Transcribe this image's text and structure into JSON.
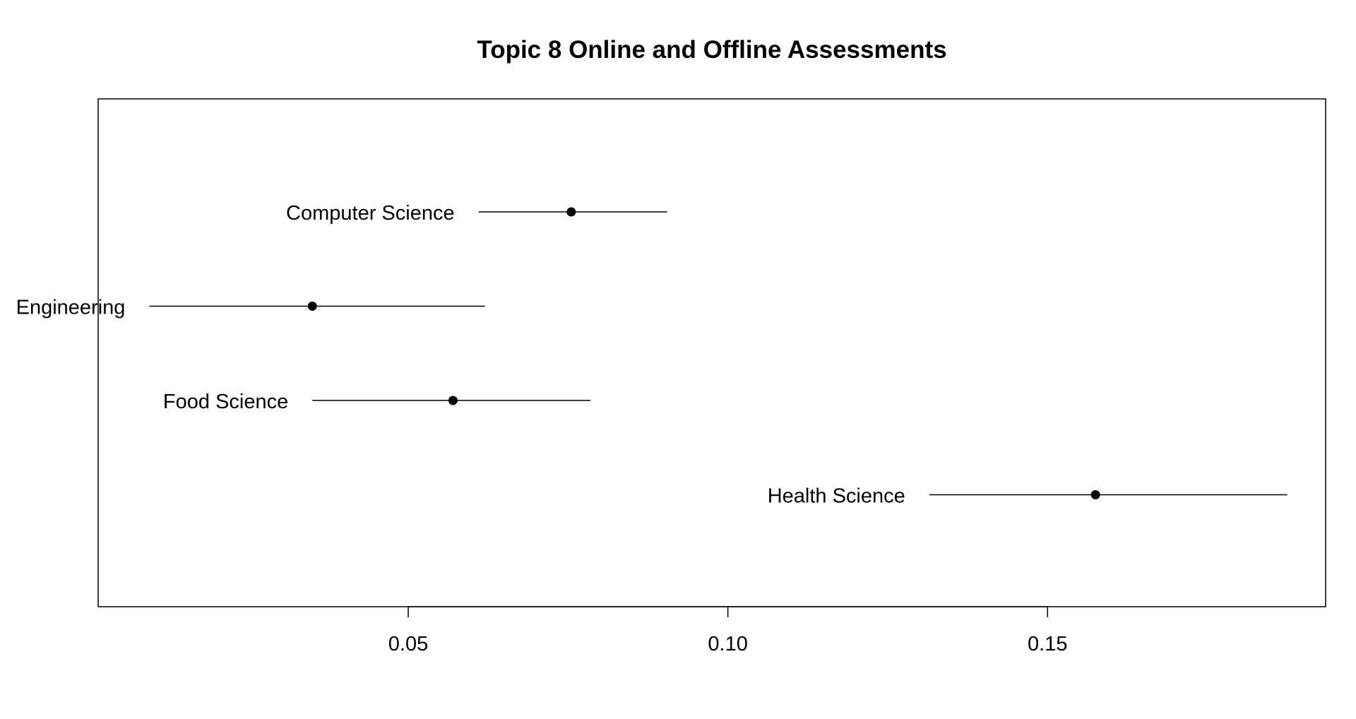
{
  "chart_data": {
    "type": "scatter",
    "title": "Topic 8 Online and Offline Assessments",
    "xlabel": "",
    "ylabel": "",
    "grid": false,
    "xlim": [
      0.0015,
      0.1935
    ],
    "x_ticks": [
      {
        "value": 0.05,
        "label": "0.05"
      },
      {
        "value": 0.1,
        "label": "0.10"
      },
      {
        "value": 0.15,
        "label": "0.15"
      }
    ],
    "series": [
      {
        "label": "Computer Science",
        "estimate": 0.0755,
        "lower": 0.061,
        "upper": 0.0905
      },
      {
        "label": "Engineering",
        "estimate": 0.035,
        "lower": 0.0095,
        "upper": 0.062
      },
      {
        "label": "Food Science",
        "estimate": 0.057,
        "lower": 0.035,
        "upper": 0.0785
      },
      {
        "label": "Health Science",
        "estimate": 0.1575,
        "lower": 0.1315,
        "upper": 0.1875
      }
    ],
    "point_color": "#000000",
    "line_color": "#000000"
  }
}
